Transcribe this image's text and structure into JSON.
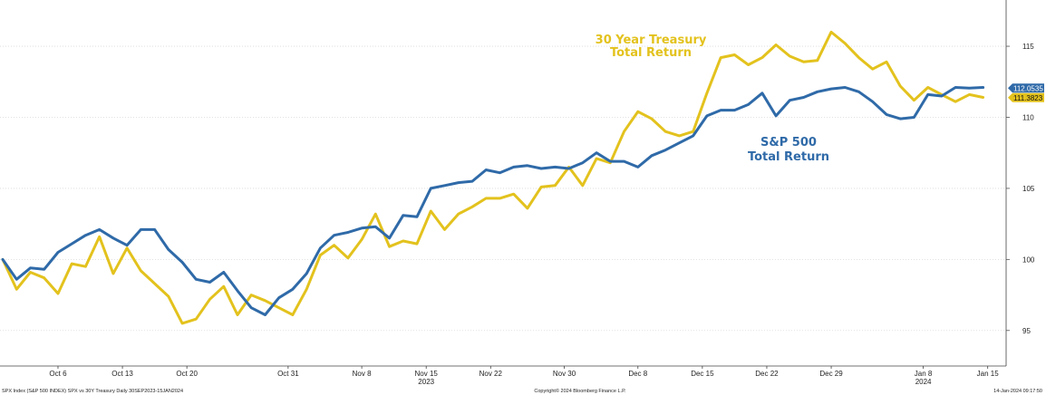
{
  "chart_data": {
    "type": "line",
    "annotations": {
      "treasury": [
        "30 Year Treasury",
        "Total Return"
      ],
      "spx": [
        "S&P 500",
        "Total Return"
      ]
    },
    "ylim": [
      92.5,
      118
    ],
    "yticks": [
      95,
      100,
      105,
      110,
      115
    ],
    "ytick_labels": [
      "95",
      "100",
      "105",
      "110",
      "115"
    ],
    "xlim": [
      -0.3,
      109
    ],
    "xticks": [
      {
        "x": 6,
        "label": "Oct 6"
      },
      {
        "x": 13,
        "label": "Oct 13"
      },
      {
        "x": 20,
        "label": "Oct 20"
      },
      {
        "x": 31,
        "label": "Oct 31"
      },
      {
        "x": 39,
        "label": "Nov 8"
      },
      {
        "x": 46,
        "label": "Nov 15"
      },
      {
        "x": 53,
        "label": "Nov 22"
      },
      {
        "x": 61,
        "label": "Nov 30"
      },
      {
        "x": 69,
        "label": "Dec 8"
      },
      {
        "x": 76,
        "label": "Dec 15"
      },
      {
        "x": 83,
        "label": "Dec 22"
      },
      {
        "x": 90,
        "label": "Dec 29"
      },
      {
        "x": 100,
        "label": "Jan 8"
      },
      {
        "x": 107,
        "label": "Jan 15"
      }
    ],
    "year_labels": [
      {
        "x": 46,
        "label": "2023"
      },
      {
        "x": 100,
        "label": "2024"
      }
    ],
    "series": [
      {
        "key": "spx",
        "color": "#2f6aa8",
        "last_value": "112.0535",
        "points": [
          [
            0,
            100
          ],
          [
            1.5,
            98.6
          ],
          [
            3,
            99.4
          ],
          [
            4.5,
            99.3
          ],
          [
            6,
            100.5
          ],
          [
            7.5,
            101.1
          ],
          [
            9,
            101.7
          ],
          [
            10.5,
            102.1
          ],
          [
            12,
            101.5
          ],
          [
            13.5,
            101
          ],
          [
            15,
            102.1
          ],
          [
            16.5,
            102.1
          ],
          [
            18,
            100.7
          ],
          [
            19.5,
            99.8
          ],
          [
            21,
            98.6
          ],
          [
            22.5,
            98.4
          ],
          [
            24,
            99.1
          ],
          [
            25.5,
            97.8
          ],
          [
            27,
            96.6
          ],
          [
            28.5,
            96.1
          ],
          [
            30,
            97.3
          ],
          [
            31.5,
            97.9
          ],
          [
            33,
            99
          ],
          [
            34.5,
            100.8
          ],
          [
            36,
            101.7
          ],
          [
            37.5,
            101.9
          ],
          [
            39,
            102.2
          ],
          [
            40.5,
            102.3
          ],
          [
            42,
            101.5
          ],
          [
            43.5,
            103.1
          ],
          [
            45,
            103
          ],
          [
            46.5,
            105
          ],
          [
            48,
            105.2
          ],
          [
            49.5,
            105.4
          ],
          [
            51,
            105.5
          ],
          [
            52.5,
            106.3
          ],
          [
            54,
            106.1
          ],
          [
            55.5,
            106.5
          ],
          [
            57,
            106.6
          ],
          [
            58.5,
            106.4
          ],
          [
            60,
            106.5
          ],
          [
            61.5,
            106.4
          ],
          [
            63,
            106.8
          ],
          [
            64.5,
            107.5
          ],
          [
            66,
            106.9
          ],
          [
            67.5,
            106.9
          ],
          [
            69,
            106.5
          ],
          [
            70.5,
            107.3
          ],
          [
            72,
            107.7
          ],
          [
            73.5,
            108.2
          ],
          [
            75,
            108.7
          ],
          [
            76.5,
            110.1
          ],
          [
            78,
            110.5
          ],
          [
            79.5,
            110.5
          ],
          [
            81,
            110.9
          ],
          [
            82.5,
            111.7
          ],
          [
            84,
            110.1
          ],
          [
            85.5,
            111.2
          ],
          [
            87,
            111.4
          ],
          [
            88.5,
            111.8
          ],
          [
            90,
            112
          ],
          [
            91.5,
            112.1
          ],
          [
            93,
            111.8
          ],
          [
            94.5,
            111.1
          ],
          [
            96,
            110.2
          ],
          [
            97.5,
            109.9
          ],
          [
            99,
            110
          ],
          [
            100.5,
            111.6
          ],
          [
            102,
            111.5
          ],
          [
            103.5,
            112.1
          ],
          [
            105,
            112.05
          ],
          [
            106.5,
            112.1
          ]
        ]
      },
      {
        "key": "treasury",
        "color": "#e3c21d",
        "last_value": "111.3823",
        "points": [
          [
            0,
            100
          ],
          [
            1.5,
            97.9
          ],
          [
            3,
            99.1
          ],
          [
            4.5,
            98.7
          ],
          [
            6,
            97.6
          ],
          [
            7.5,
            99.7
          ],
          [
            9,
            99.5
          ],
          [
            10.5,
            101.6
          ],
          [
            12,
            99
          ],
          [
            13.5,
            100.8
          ],
          [
            15,
            99.2
          ],
          [
            16.5,
            98.3
          ],
          [
            18,
            97.4
          ],
          [
            19.5,
            95.5
          ],
          [
            21,
            95.8
          ],
          [
            22.5,
            97.2
          ],
          [
            24,
            98.1
          ],
          [
            25.5,
            96.1
          ],
          [
            27,
            97.5
          ],
          [
            28.5,
            97.1
          ],
          [
            30,
            96.6
          ],
          [
            31.5,
            96.1
          ],
          [
            33,
            97.9
          ],
          [
            34.5,
            100.3
          ],
          [
            36,
            101
          ],
          [
            37.5,
            100.1
          ],
          [
            39,
            101.4
          ],
          [
            40.5,
            103.2
          ],
          [
            42,
            100.9
          ],
          [
            43.5,
            101.3
          ],
          [
            45,
            101.1
          ],
          [
            46.5,
            103.4
          ],
          [
            48,
            102.1
          ],
          [
            49.5,
            103.2
          ],
          [
            51,
            103.7
          ],
          [
            52.5,
            104.3
          ],
          [
            54,
            104.3
          ],
          [
            55.5,
            104.6
          ],
          [
            57,
            103.6
          ],
          [
            58.5,
            105.1
          ],
          [
            60,
            105.2
          ],
          [
            61.5,
            106.5
          ],
          [
            63,
            105.2
          ],
          [
            64.5,
            107.1
          ],
          [
            66,
            106.8
          ],
          [
            67.5,
            109
          ],
          [
            69,
            110.4
          ],
          [
            70.5,
            109.9
          ],
          [
            72,
            109
          ],
          [
            73.5,
            108.7
          ],
          [
            75,
            109
          ],
          [
            76.5,
            111.7
          ],
          [
            78,
            114.2
          ],
          [
            79.5,
            114.4
          ],
          [
            81,
            113.7
          ],
          [
            82.5,
            114.2
          ],
          [
            84,
            115.1
          ],
          [
            85.5,
            114.3
          ],
          [
            87,
            113.9
          ],
          [
            88.5,
            114
          ],
          [
            90,
            116
          ],
          [
            91.5,
            115.2
          ],
          [
            93,
            114.2
          ],
          [
            94.5,
            113.4
          ],
          [
            96,
            113.9
          ],
          [
            97.5,
            112.2
          ],
          [
            99,
            111.2
          ],
          [
            100.5,
            112.1
          ],
          [
            102,
            111.6
          ],
          [
            103.5,
            111.1
          ],
          [
            105,
            111.6
          ],
          [
            106.5,
            111.4
          ]
        ]
      }
    ]
  },
  "footer": {
    "left": "SPX Index (S&P 500 INDEX) SPX vs 30Y Treasury  Daily 30SEP2023-15JAN2024",
    "center": "Copyright© 2024 Bloomberg Finance L.P.",
    "right": "14-Jan-2024 09:17:50"
  }
}
